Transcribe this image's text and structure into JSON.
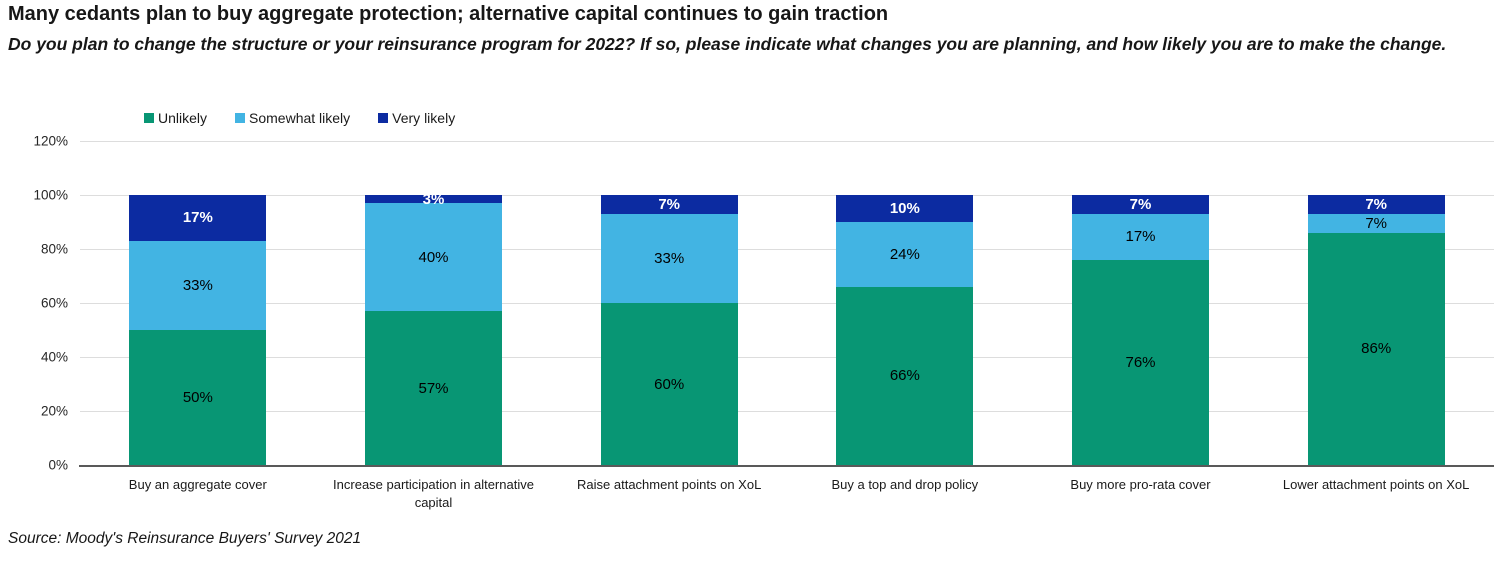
{
  "header": {
    "title": "Many cedants plan to buy aggregate protection; alternative capital continues to gain traction",
    "subtitle": "Do you plan to change the structure or your reinsurance program for 2022? If so, please indicate what changes you are planning, and how likely you are to make the change."
  },
  "footer": {
    "source": "Source: Moody's Reinsurance Buyers' Survey 2021"
  },
  "chart_data": {
    "type": "bar",
    "stacked": true,
    "title": "Many cedants plan to buy aggregate protection; alternative capital continues to gain traction",
    "xlabel": "",
    "ylabel": "",
    "categories": [
      "Buy an aggregate cover",
      "Increase participation in alternative capital",
      "Raise attachment points on XoL",
      "Buy a top and drop policy",
      "Buy more pro-rata cover",
      "Lower attachment points on XoL"
    ],
    "series": [
      {
        "name": "Unlikely",
        "color": "#089674",
        "label_color": "#000000",
        "label_bold": false,
        "values": [
          50,
          57,
          60,
          66,
          76,
          86
        ]
      },
      {
        "name": "Somewhat likely",
        "color": "#42B4E3",
        "label_color": "#000000",
        "label_bold": false,
        "values": [
          33,
          40,
          33,
          24,
          17,
          7
        ]
      },
      {
        "name": "Very likely",
        "color": "#0C2BA1",
        "label_color": "#FFFFFF",
        "label_bold": true,
        "values": [
          17,
          3,
          7,
          10,
          7,
          7
        ]
      }
    ],
    "value_suffix": "%",
    "ylim": [
      0,
      120
    ],
    "y_ticks": [
      "0%",
      "20%",
      "40%",
      "60%",
      "80%",
      "100%",
      "120%"
    ],
    "grid": true,
    "legend_position": "top",
    "axis_line_color": "#595959",
    "gridline_color": "#dddddd"
  }
}
